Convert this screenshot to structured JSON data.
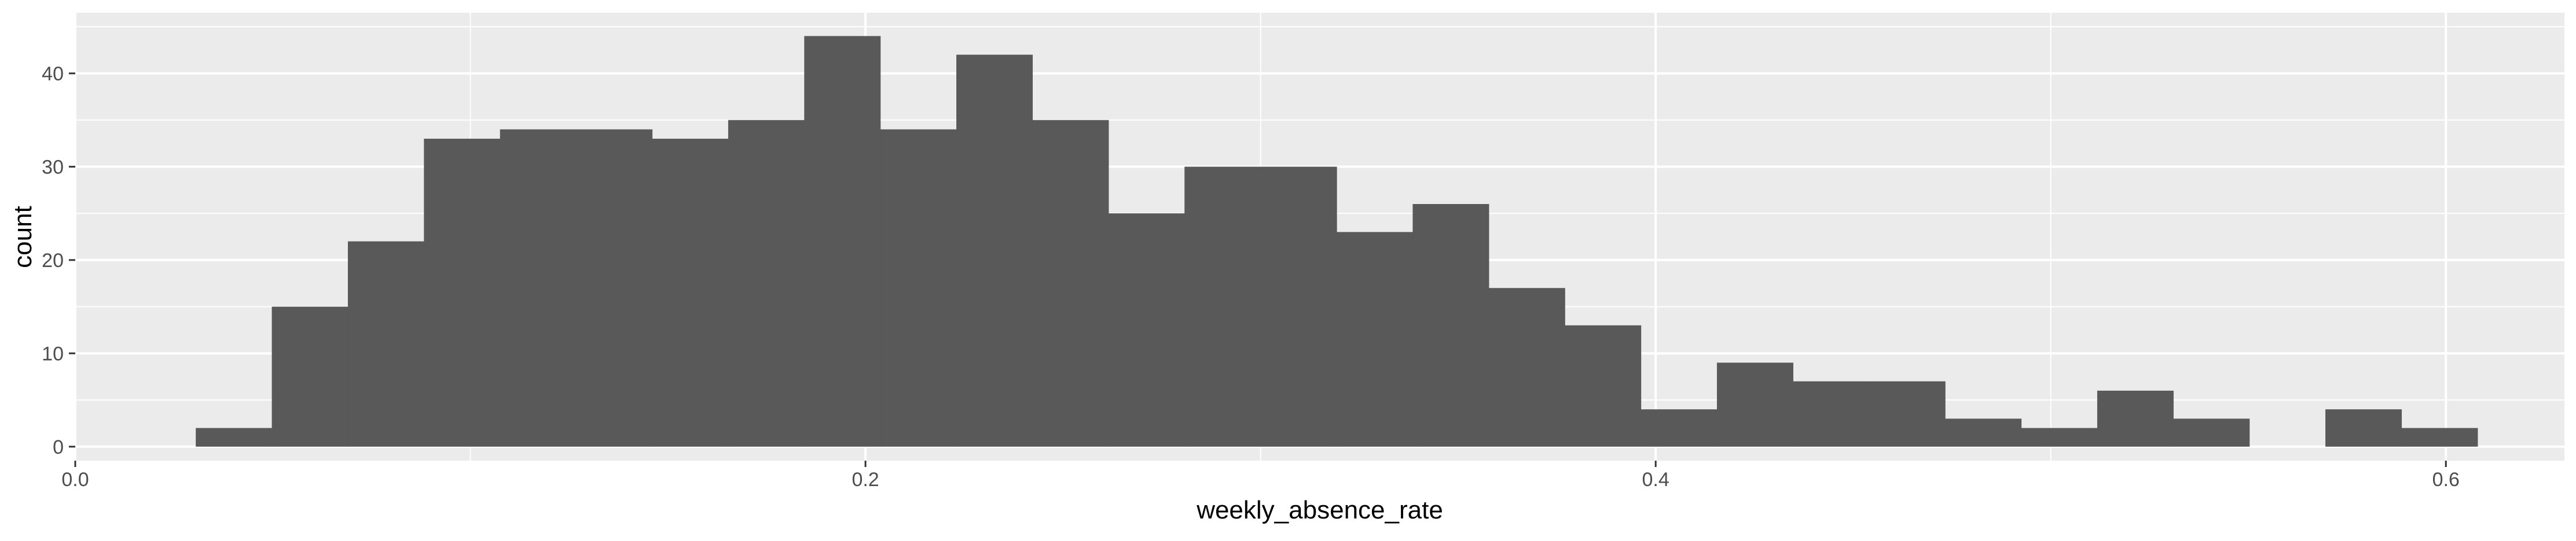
{
  "chart_data": {
    "type": "bar",
    "subtype": "histogram",
    "title": "",
    "xlabel": "weekly_absence_rate",
    "ylabel": "count",
    "xlim": [
      0,
      0.63
    ],
    "ylim": [
      -1.5,
      46.5
    ],
    "x_ticks": [
      {
        "value": 0.0,
        "label": "0.0"
      },
      {
        "value": 0.2,
        "label": "0.2"
      },
      {
        "value": 0.4,
        "label": "0.4"
      },
      {
        "value": 0.6,
        "label": "0.6"
      }
    ],
    "y_ticks": [
      {
        "value": 0,
        "label": "0"
      },
      {
        "value": 10,
        "label": "10"
      },
      {
        "value": 20,
        "label": "20"
      },
      {
        "value": 30,
        "label": "30"
      },
      {
        "value": 40,
        "label": "40"
      }
    ],
    "bin_width": 0.01925,
    "bin_start": 0.0305,
    "counts": [
      2,
      15,
      22,
      33,
      34,
      34,
      33,
      35,
      44,
      34,
      42,
      35,
      25,
      30,
      30,
      23,
      26,
      17,
      13,
      4,
      9,
      7,
      7,
      3,
      2,
      6,
      3,
      0,
      4,
      2
    ],
    "bar_color": "#595959",
    "panel_background": "#ebebeb",
    "grid": true,
    "grid_color": "#ffffff",
    "legend": "none"
  }
}
